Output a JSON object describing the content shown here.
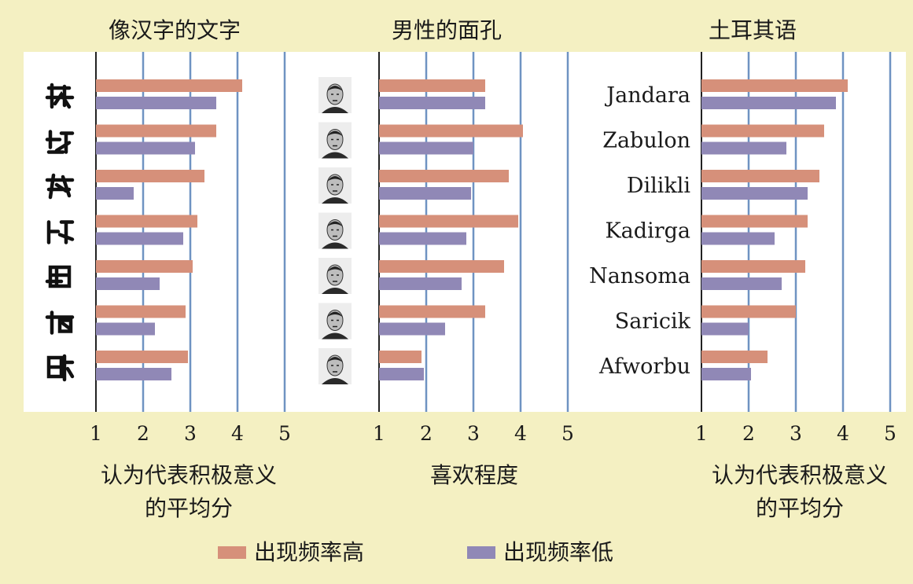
{
  "colors": {
    "background": "#f4f0c2",
    "plot_background": "#ffffff",
    "high_frequency": "#d6907a",
    "low_frequency": "#9088b6",
    "gridline": "#6f93c2",
    "axis": "#222222"
  },
  "legend": {
    "high_label": "出现频率高",
    "low_label": "出现频率低"
  },
  "chart_data": [
    {
      "type": "bar",
      "orientation": "horizontal",
      "title": "像汉字的文字",
      "xlabel": "认为代表积极意义",
      "xlabel2": "的平均分",
      "category_kind": "pseudo-chinese-glyphs",
      "categories": [
        "",
        "",
        "",
        "",
        "",
        "",
        ""
      ],
      "xlim": [
        1,
        5
      ],
      "ticks": [
        "1",
        "2",
        "3",
        "4",
        "5"
      ],
      "series": [
        {
          "name": "出现频率高",
          "values": [
            4.1,
            3.55,
            3.3,
            3.15,
            3.05,
            2.9,
            2.95
          ]
        },
        {
          "name": "出现频率低",
          "values": [
            3.55,
            3.1,
            1.8,
            2.85,
            2.35,
            2.25,
            2.6
          ]
        }
      ]
    },
    {
      "type": "bar",
      "orientation": "horizontal",
      "title": "男性的面孔",
      "xlabel": "喜欢程度",
      "xlabel2": "",
      "category_kind": "male-face-photos",
      "categories": [
        "",
        "",
        "",
        "",
        "",
        "",
        ""
      ],
      "xlim": [
        1,
        5
      ],
      "ticks": [
        "1",
        "2",
        "3",
        "4",
        "5"
      ],
      "series": [
        {
          "name": "出现频率高",
          "values": [
            3.25,
            4.05,
            3.75,
            3.95,
            3.65,
            3.25,
            1.9
          ]
        },
        {
          "name": "出现频率低",
          "values": [
            3.25,
            3.0,
            2.95,
            2.85,
            2.75,
            2.4,
            1.95
          ]
        }
      ]
    },
    {
      "type": "bar",
      "orientation": "horizontal",
      "title": "土耳其语",
      "xlabel": "认为代表积极意义",
      "xlabel2": "的平均分",
      "category_kind": "text",
      "categories": [
        "Jandara",
        "Zabulon",
        "Dilikli",
        "Kadirga",
        "Nansoma",
        "Saricik",
        "Afworbu"
      ],
      "xlim": [
        1,
        5
      ],
      "ticks": [
        "1",
        "2",
        "3",
        "4",
        "5"
      ],
      "series": [
        {
          "name": "出现频率高",
          "values": [
            4.1,
            3.6,
            3.5,
            3.25,
            3.2,
            3.0,
            2.4
          ]
        },
        {
          "name": "出现频率低",
          "values": [
            3.85,
            2.8,
            3.25,
            2.55,
            2.7,
            2.0,
            2.05
          ]
        }
      ]
    }
  ]
}
